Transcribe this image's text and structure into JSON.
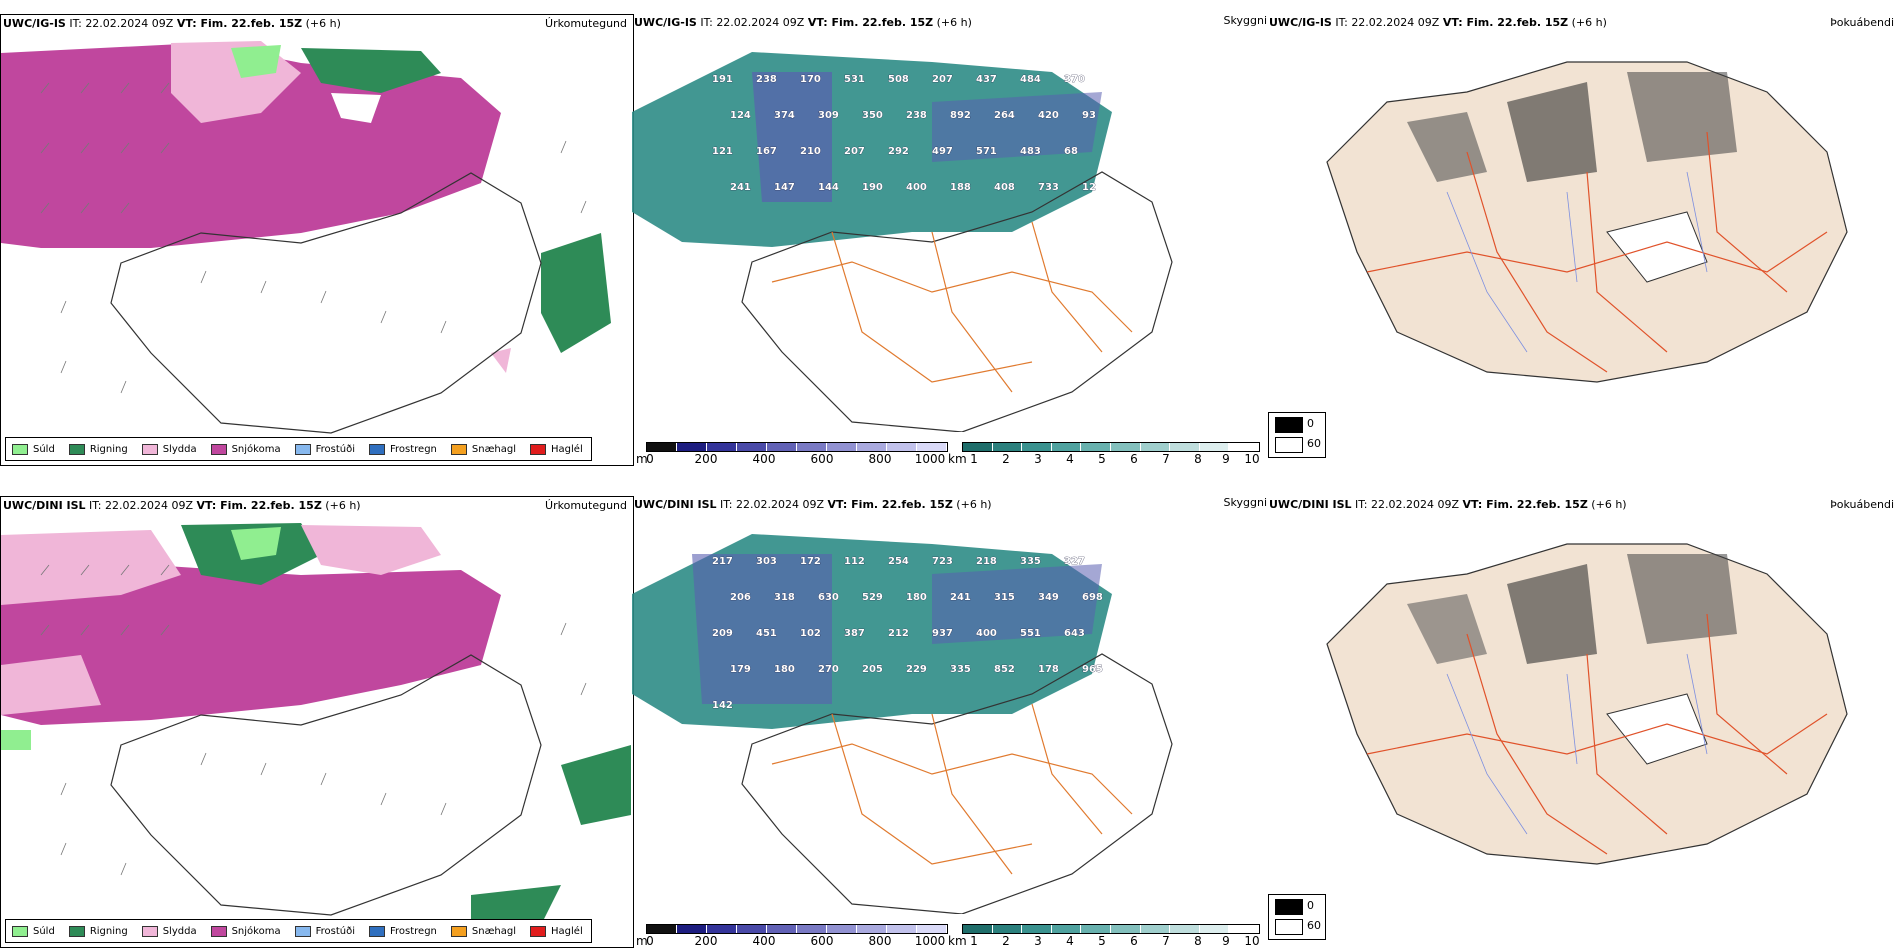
{
  "colors": {
    "sudl": "#90ee90",
    "rigning": "#2e8b57",
    "slydda": "#f0b6d8",
    "snjokoma": "#c0479e",
    "frostudi": "#87b8ee",
    "frostregn": "#2f6fbf",
    "snaehagl": "#f4a020",
    "haglel": "#e11d1d",
    "teal": "#2e8c86",
    "fogland": "#f2e3d3",
    "roads": "#e07a2f"
  },
  "top": {
    "precip": {
      "model": "UWC/IG-IS",
      "rest": " IT: 22.02.2024 09Z ",
      "vt": "VT: Fim. 22.feb. 15Z",
      "lead": " (+6 h)",
      "right": "Úrkomutegund"
    },
    "cloud": {
      "model": "UWC/IG-IS",
      "rest": " IT: 22.02.2024 09Z ",
      "vt": "VT: Fim. 22.feb. 15Z",
      "lead": " (+6 h)",
      "right": "Skyggni"
    },
    "fog": {
      "model": "UWC/IG-IS",
      "rest": " IT: 22.02.2024 09Z ",
      "vt": "VT: Fim. 22.feb. 15Z",
      "lead": " (+6 h)",
      "right": "Þokuábendi"
    },
    "ceiling_labels": [
      "191",
      "238",
      "170",
      "531",
      "508",
      "207",
      "437",
      "484",
      "370",
      "124",
      "374",
      "309",
      "350",
      "238",
      "892",
      "264",
      "420",
      "93",
      "121",
      "167",
      "210",
      "207",
      "292",
      "497",
      "571",
      "483",
      "68",
      "241",
      "147",
      "144",
      "190",
      "400",
      "188",
      "408",
      "733",
      "12"
    ]
  },
  "bottom": {
    "precip": {
      "model": "UWC/DINI ISL",
      "rest": " IT: 22.02.2024 09Z ",
      "vt": "VT: Fim. 22.feb. 15Z",
      "lead": " (+6 h)",
      "right": "Úrkomutegund"
    },
    "cloud": {
      "model": "UWC/DINI ISL",
      "rest": " IT: 22.02.2024 09Z ",
      "vt": "VT: Fim. 22.feb. 15Z",
      "lead": " (+6 h)",
      "right": "Skyggni"
    },
    "fog": {
      "model": "UWC/DINI ISL",
      "rest": " IT: 22.02.2024 09Z ",
      "vt": "VT: Fim. 22.feb. 15Z",
      "lead": " (+6 h)",
      "right": "Þokuábendi"
    },
    "ceiling_labels": [
      "217",
      "303",
      "172",
      "112",
      "254",
      "723",
      "218",
      "335",
      "327",
      "206",
      "318",
      "630",
      "529",
      "180",
      "241",
      "315",
      "349",
      "698",
      "209",
      "451",
      "102",
      "387",
      "212",
      "937",
      "400",
      "551",
      "643",
      "179",
      "180",
      "270",
      "205",
      "229",
      "335",
      "852",
      "178",
      "965",
      "142"
    ]
  },
  "legend": [
    {
      "label": "Súld",
      "color": "#90ee90"
    },
    {
      "label": "Rigning",
      "color": "#2e8b57"
    },
    {
      "label": "Slydda",
      "color": "#f0b6d8"
    },
    {
      "label": "Snjókoma",
      "color": "#c0479e"
    },
    {
      "label": "Frostúði",
      "color": "#87b8ee"
    },
    {
      "label": "Frostregn",
      "color": "#2f6fbf"
    },
    {
      "label": "Snæhagl",
      "color": "#f4a020"
    },
    {
      "label": "Haglél",
      "color": "#e11d1d"
    }
  ],
  "ceiling_scale": {
    "unit": "m",
    "ticks": [
      "0",
      "200",
      "400",
      "600",
      "800",
      "1000"
    ]
  },
  "visibility_scale": {
    "unit": "km",
    "ticks": [
      "1",
      "2",
      "3",
      "4",
      "5",
      "6",
      "7",
      "8",
      "9",
      "10"
    ]
  },
  "fog_scale": {
    "ticks": [
      "0",
      "60"
    ]
  }
}
